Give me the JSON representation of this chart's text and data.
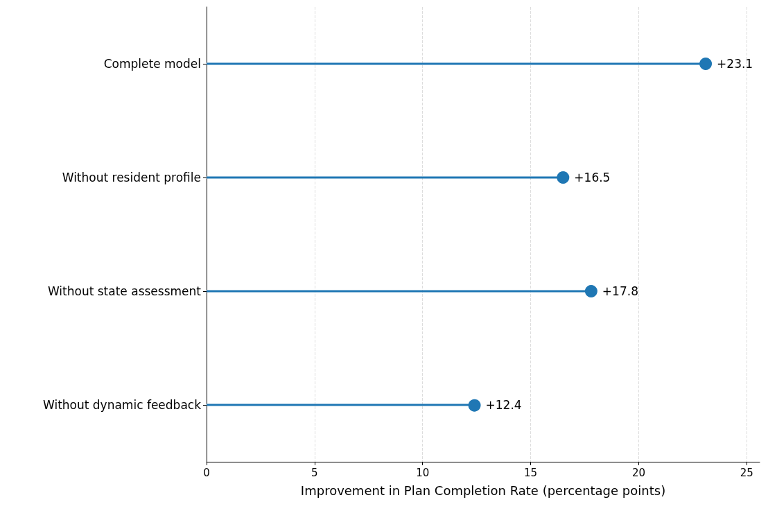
{
  "chart_data": {
    "type": "lollipop",
    "orientation": "horizontal",
    "xlabel": "Improvement in Plan Completion Rate (percentage points)",
    "categories": [
      "Complete model",
      "Without resident profile",
      "Without state assessment",
      "Without dynamic feedback"
    ],
    "values": [
      23.1,
      16.5,
      17.8,
      12.4
    ],
    "value_labels": [
      "+23.1",
      "+16.5",
      "+17.8",
      "+12.4"
    ],
    "color": "#1f77b4",
    "marker": "circle",
    "xlim": [
      0,
      25.6
    ],
    "xticks": [
      0,
      5,
      10,
      15,
      20,
      25
    ],
    "grid": "x"
  }
}
